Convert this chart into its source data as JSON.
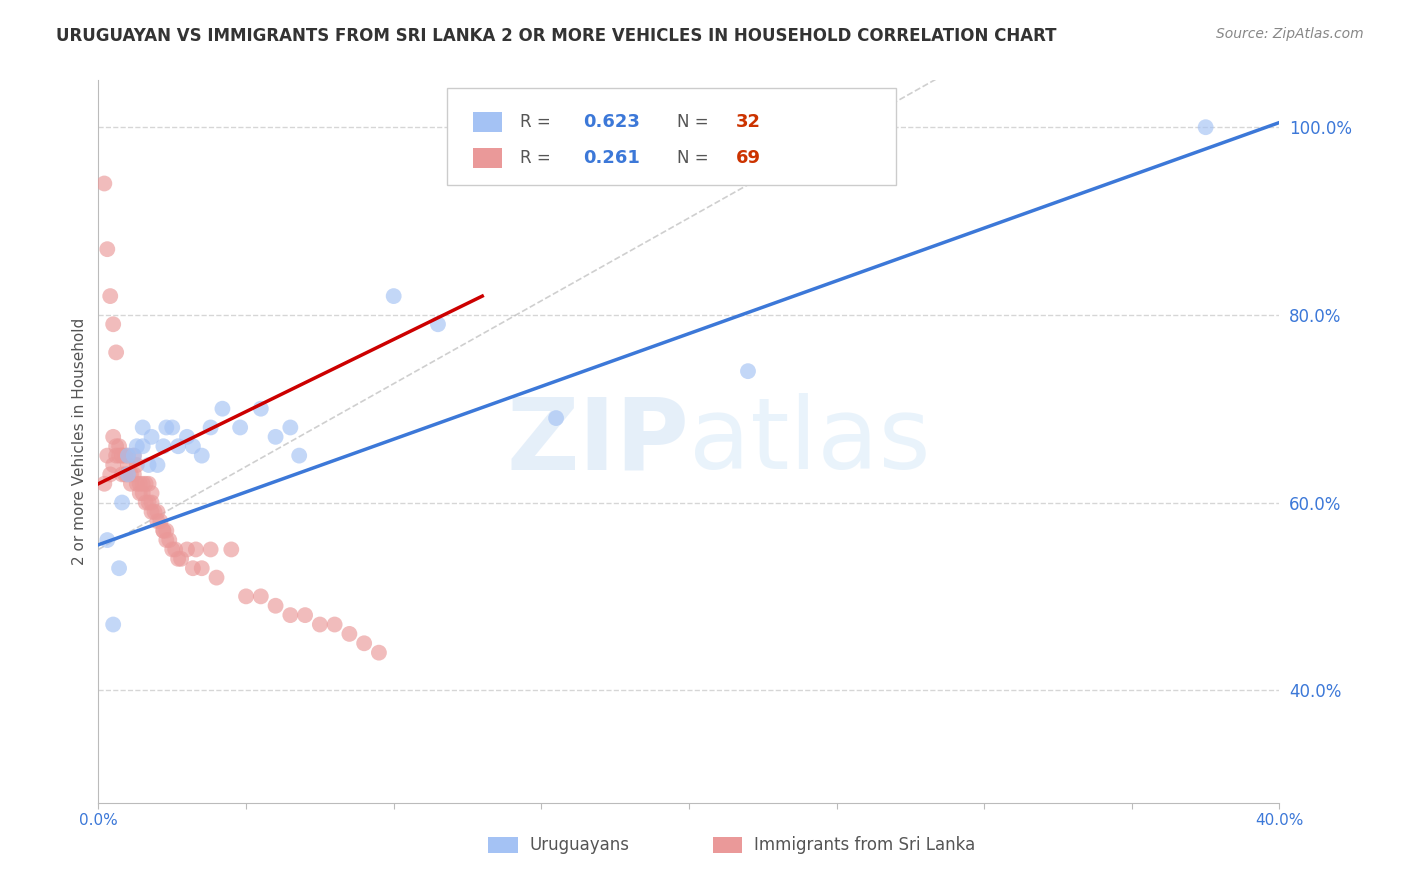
{
  "title": "URUGUAYAN VS IMMIGRANTS FROM SRI LANKA 2 OR MORE VEHICLES IN HOUSEHOLD CORRELATION CHART",
  "source": "Source: ZipAtlas.com",
  "ylabel": "2 or more Vehicles in Household",
  "xlim": [
    0.0,
    0.4
  ],
  "ylim": [
    0.28,
    1.05
  ],
  "yticks_right": [
    0.4,
    0.6,
    0.8,
    1.0
  ],
  "ytick_labels_right": [
    "40.0%",
    "60.0%",
    "80.0%",
    "100.0%"
  ],
  "xticks": [
    0.0,
    0.05,
    0.1,
    0.15,
    0.2,
    0.25,
    0.3,
    0.35,
    0.4
  ],
  "xtick_labels": [
    "0.0%",
    "",
    "",
    "",
    "",
    "",
    "",
    "",
    "40.0%"
  ],
  "blue_color": "#a4c2f4",
  "pink_color": "#ea9999",
  "blue_line_color": "#3c78d8",
  "pink_line_color": "#cc0000",
  "diag_color": "#cccccc",
  "grid_color": "#cccccc",
  "blue_R": 0.623,
  "blue_N": 32,
  "pink_R": 0.261,
  "pink_N": 69,
  "blue_label": "Uruguayans",
  "pink_label": "Immigrants from Sri Lanka",
  "watermark_zip": "ZIP",
  "watermark_atlas": "atlas",
  "background_color": "#ffffff",
  "blue_line_x0": 0.0,
  "blue_line_y0": 0.555,
  "blue_line_x1": 0.4,
  "blue_line_y1": 1.005,
  "pink_line_x0": 0.0,
  "pink_line_y0": 0.62,
  "pink_line_x1": 0.13,
  "pink_line_y1": 0.82,
  "pink_line_dash_x0": 0.0,
  "pink_line_dash_y0": 0.62,
  "pink_line_dash_x1": 0.25,
  "pink_line_dash_y1": 1.0,
  "blue_scatter_x": [
    0.003,
    0.005,
    0.007,
    0.008,
    0.01,
    0.01,
    0.012,
    0.013,
    0.015,
    0.015,
    0.017,
    0.018,
    0.02,
    0.022,
    0.023,
    0.025,
    0.027,
    0.03,
    0.032,
    0.035,
    0.038,
    0.042,
    0.048,
    0.055,
    0.06,
    0.065,
    0.068,
    0.1,
    0.115,
    0.155,
    0.22,
    0.375
  ],
  "blue_scatter_y": [
    0.56,
    0.47,
    0.53,
    0.6,
    0.65,
    0.63,
    0.65,
    0.66,
    0.68,
    0.66,
    0.64,
    0.67,
    0.64,
    0.66,
    0.68,
    0.68,
    0.66,
    0.67,
    0.66,
    0.65,
    0.68,
    0.7,
    0.68,
    0.7,
    0.67,
    0.68,
    0.65,
    0.82,
    0.79,
    0.69,
    0.74,
    1.0
  ],
  "pink_scatter_x": [
    0.002,
    0.003,
    0.004,
    0.005,
    0.005,
    0.006,
    0.006,
    0.007,
    0.007,
    0.008,
    0.008,
    0.008,
    0.009,
    0.009,
    0.01,
    0.01,
    0.01,
    0.011,
    0.011,
    0.012,
    0.012,
    0.013,
    0.013,
    0.014,
    0.014,
    0.015,
    0.015,
    0.016,
    0.016,
    0.017,
    0.017,
    0.018,
    0.018,
    0.018,
    0.019,
    0.02,
    0.02,
    0.021,
    0.022,
    0.022,
    0.023,
    0.023,
    0.024,
    0.025,
    0.026,
    0.027,
    0.028,
    0.03,
    0.032,
    0.033,
    0.035,
    0.038,
    0.04,
    0.045,
    0.05,
    0.055,
    0.06,
    0.065,
    0.07,
    0.075,
    0.08,
    0.085,
    0.09,
    0.095,
    0.002,
    0.003,
    0.004,
    0.005,
    0.006
  ],
  "pink_scatter_y": [
    0.62,
    0.65,
    0.63,
    0.64,
    0.67,
    0.66,
    0.65,
    0.66,
    0.65,
    0.65,
    0.63,
    0.65,
    0.65,
    0.63,
    0.65,
    0.64,
    0.63,
    0.63,
    0.62,
    0.65,
    0.63,
    0.64,
    0.62,
    0.62,
    0.61,
    0.62,
    0.61,
    0.62,
    0.6,
    0.62,
    0.6,
    0.61,
    0.6,
    0.59,
    0.59,
    0.59,
    0.58,
    0.58,
    0.57,
    0.57,
    0.57,
    0.56,
    0.56,
    0.55,
    0.55,
    0.54,
    0.54,
    0.55,
    0.53,
    0.55,
    0.53,
    0.55,
    0.52,
    0.55,
    0.5,
    0.5,
    0.49,
    0.48,
    0.48,
    0.47,
    0.47,
    0.46,
    0.45,
    0.44,
    0.94,
    0.87,
    0.82,
    0.79,
    0.76
  ]
}
